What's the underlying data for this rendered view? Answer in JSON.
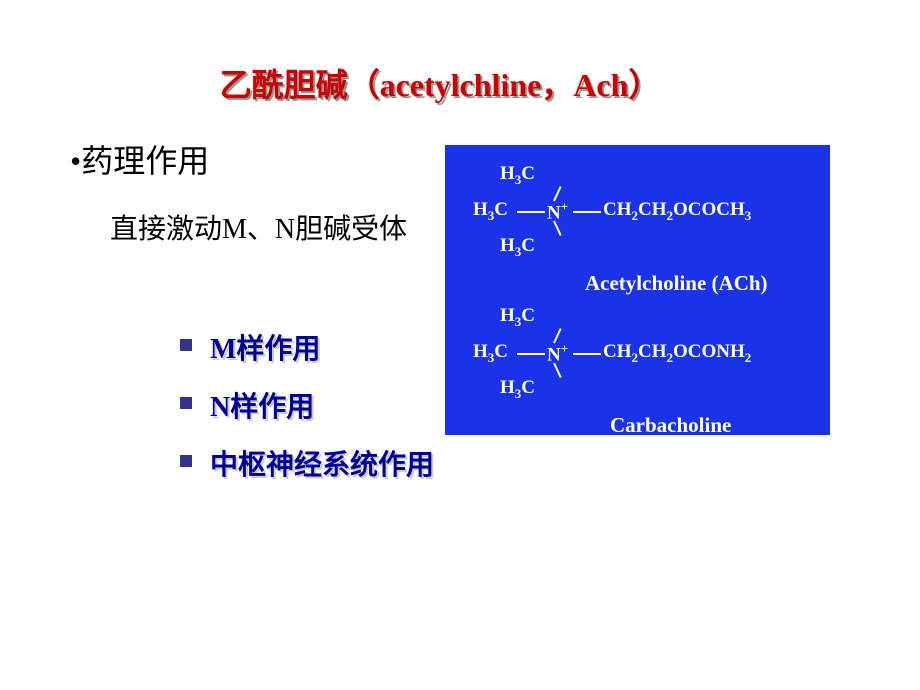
{
  "title": "乙酰胆碱（acetylchline，Ach）",
  "sectionHeading": "•药理作用",
  "subText": "直接激动M、N胆碱受体",
  "bullets": [
    "M样作用",
    "N样作用",
    "中枢神经系统作用"
  ],
  "chemPanel": {
    "background": "#1a33e6",
    "textColor": "#ffffff",
    "molecule1": {
      "groups": {
        "top": "H₃C",
        "mid": "H₃C",
        "bot": "H₃C"
      },
      "center": "N",
      "centerCharge": "+",
      "chain": "CH₂CH₂OCOCH₃",
      "label": "Acetylcholine (ACh)"
    },
    "molecule2": {
      "groups": {
        "top": "H₃C",
        "mid": "H₃C",
        "bot": "H₃C"
      },
      "center": "N",
      "centerCharge": "+",
      "chain": "CH₂CH₂OCONH₂",
      "label": "Carbacholine"
    }
  },
  "colors": {
    "titleColor": "#cc0000",
    "titleShadow": "#999999",
    "bodyText": "#000000",
    "bulletText": "#000099",
    "bulletShadow": "#cccccc",
    "bulletMarker": "#333388",
    "slideBg": "#ffffff"
  },
  "fontSizes": {
    "title": 32,
    "section": 32,
    "sub": 28,
    "bullet": 28,
    "chemText": 19,
    "chemLabel": 21
  }
}
